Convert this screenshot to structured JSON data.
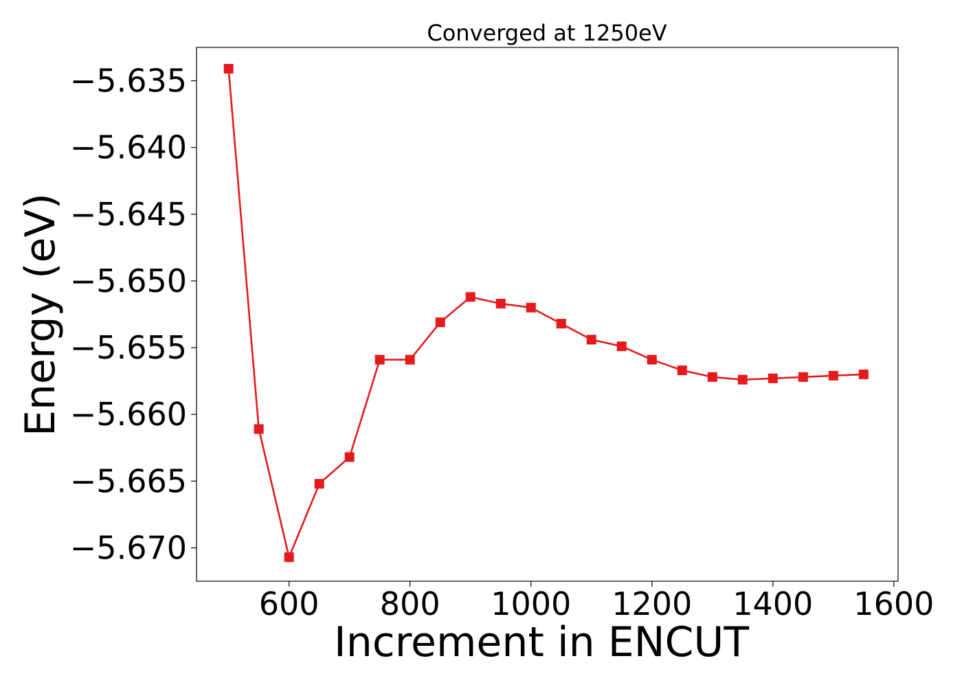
{
  "chart_data": {
    "type": "line",
    "title": "Converged at 1250eV",
    "xlabel": "Increment in ENCUT",
    "ylabel": "Energy (eV)",
    "xlim": [
      447,
      1607
    ],
    "ylim": [
      -5.6725,
      -5.6325
    ],
    "xticks": [
      600,
      800,
      1000,
      1200,
      1400,
      1600
    ],
    "yticks": [
      -5.635,
      -5.64,
      -5.645,
      -5.65,
      -5.655,
      -5.66,
      -5.665,
      -5.67
    ],
    "xtick_labels": [
      "600",
      "800",
      "1000",
      "1200",
      "1400",
      "1600"
    ],
    "ytick_labels": [
      "−5.635",
      "−5.640",
      "−5.645",
      "−5.650",
      "−5.655",
      "−5.660",
      "−5.665",
      "−5.670"
    ],
    "grid": false,
    "series": [
      {
        "color": "#e41a1c",
        "marker": "square",
        "x": [
          500,
          550,
          600,
          650,
          700,
          750,
          800,
          850,
          900,
          950,
          1000,
          1050,
          1100,
          1150,
          1200,
          1250,
          1300,
          1350,
          1400,
          1450,
          1500,
          1550
        ],
        "y": [
          -5.6341,
          -5.6611,
          -5.6707,
          -5.6652,
          -5.6632,
          -5.6559,
          -5.6559,
          -5.6531,
          -5.6512,
          -5.6517,
          -5.652,
          -5.6532,
          -5.6544,
          -5.6549,
          -5.6559,
          -5.6567,
          -5.6572,
          -5.6574,
          -5.6573,
          -5.6572,
          -5.6571,
          -5.657
        ]
      }
    ]
  }
}
